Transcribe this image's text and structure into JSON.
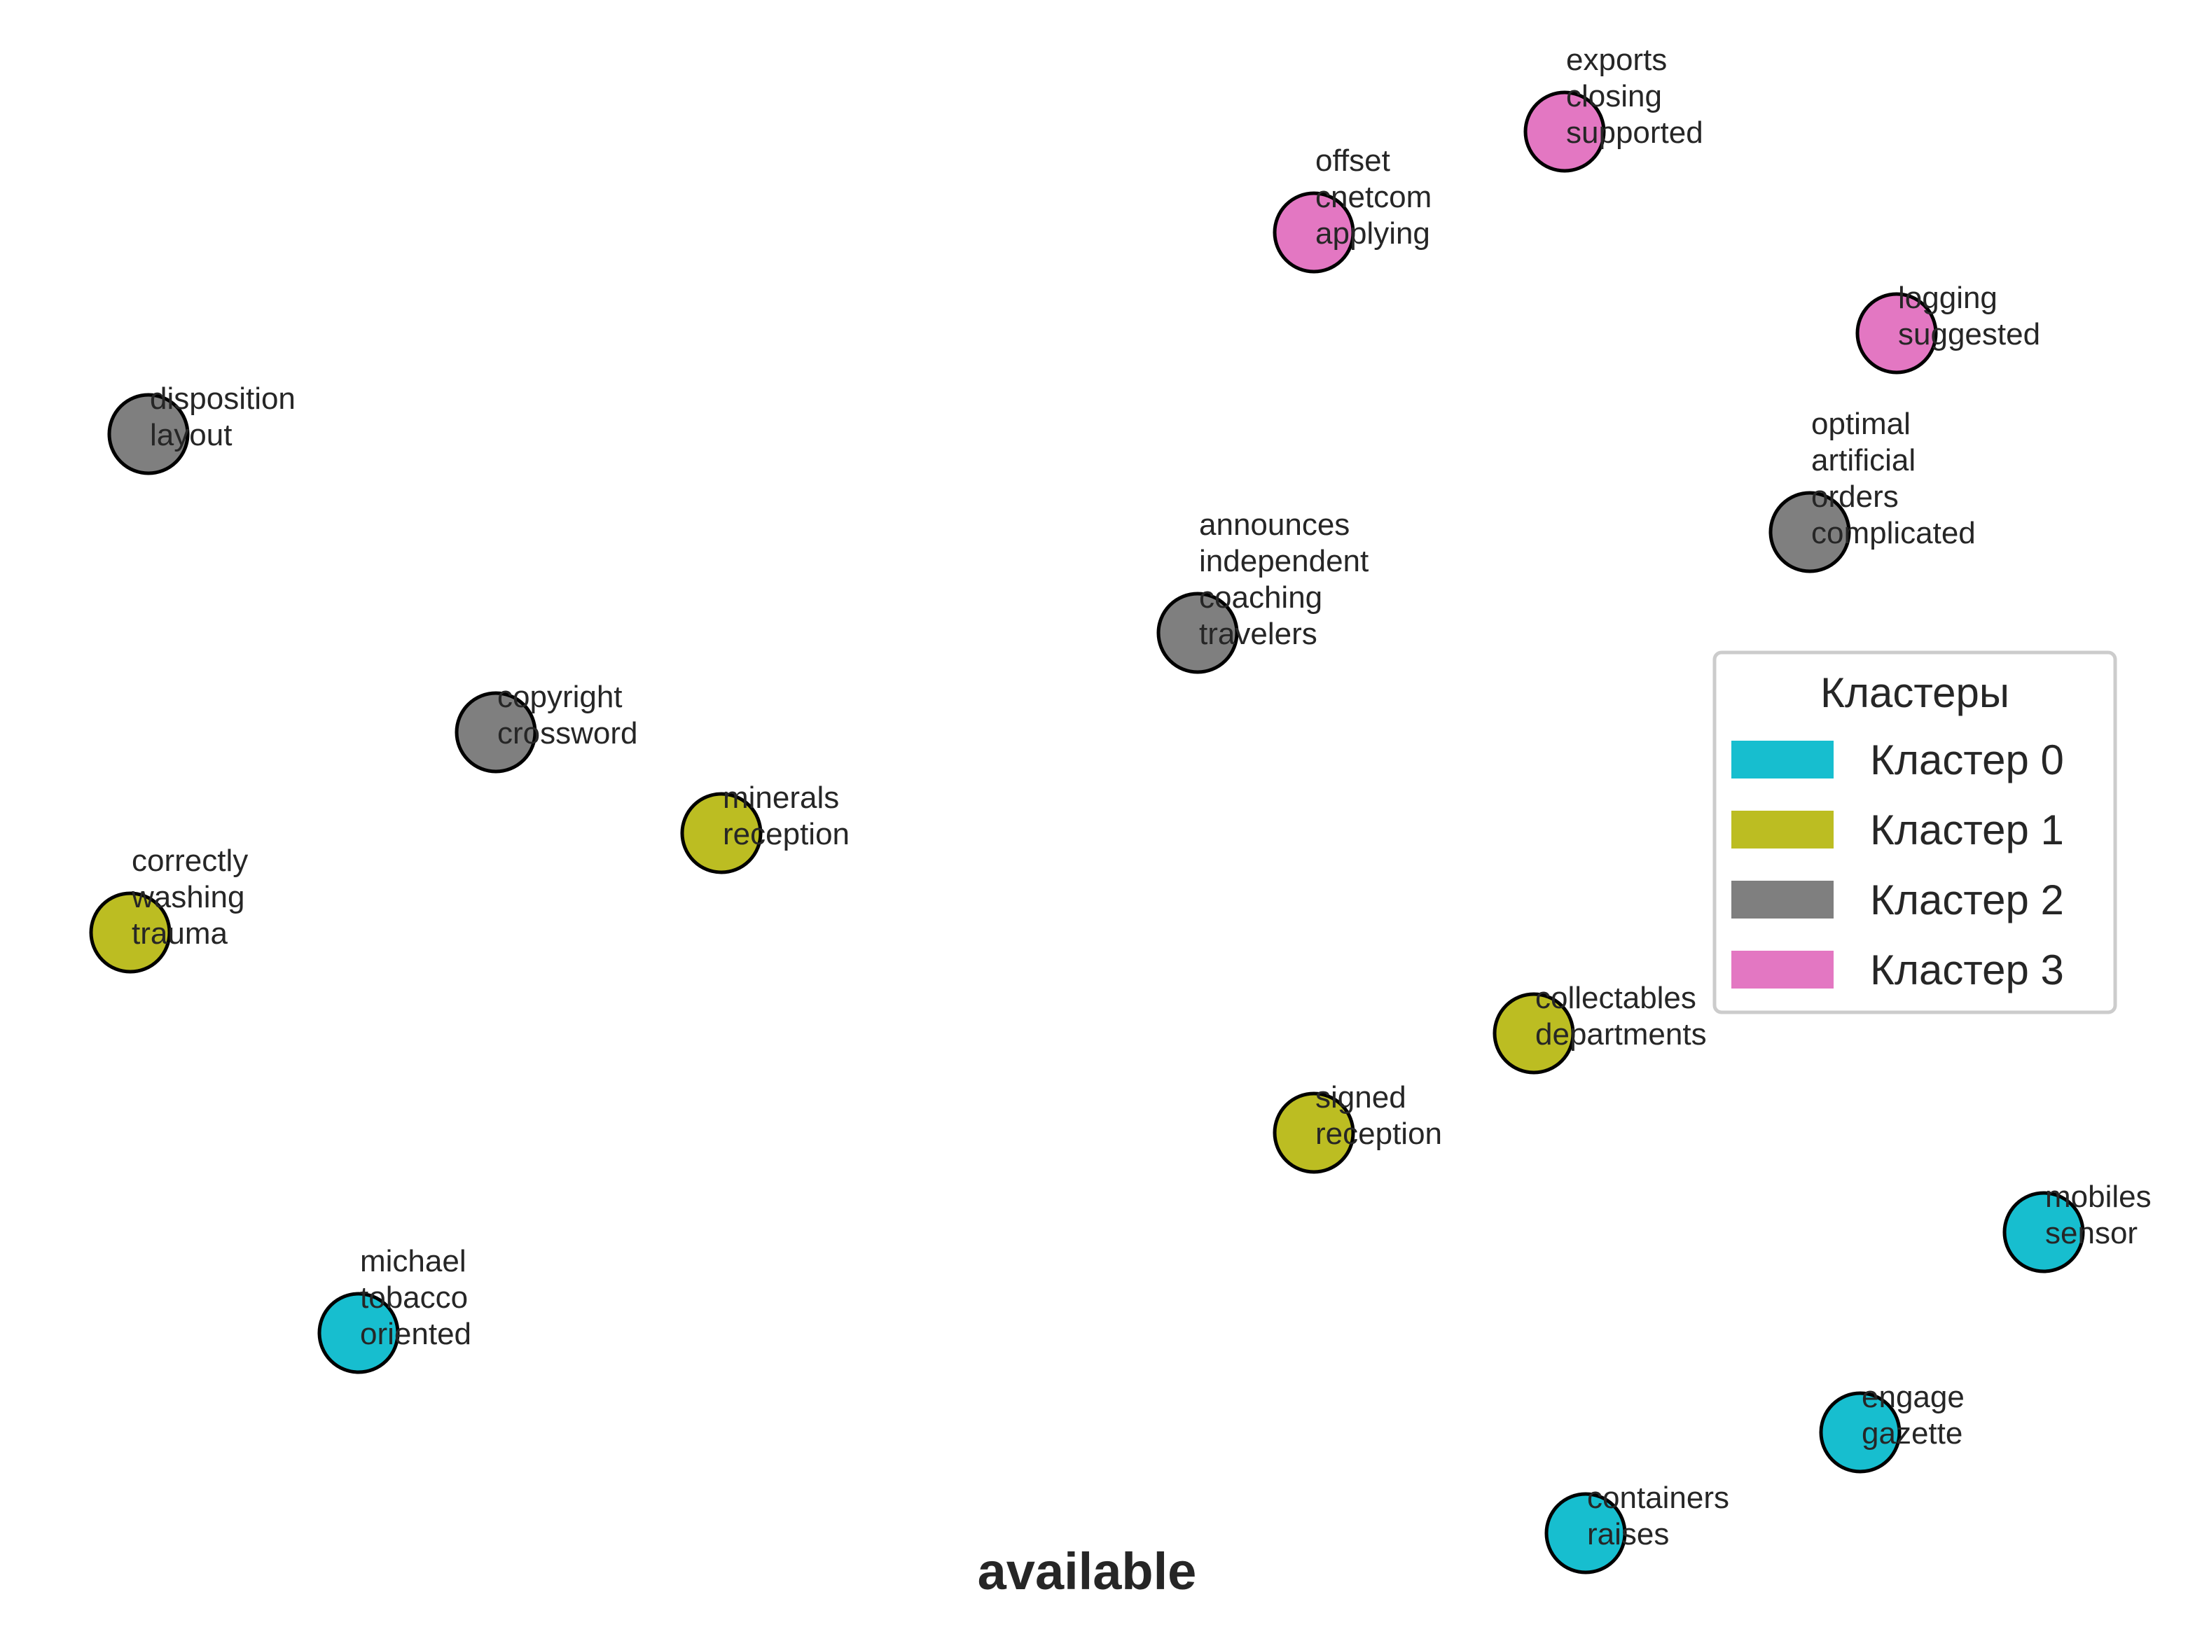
{
  "title": "available",
  "legend": {
    "title": "Кластеры",
    "items": [
      {
        "cluster": 0,
        "label": "Кластер 0",
        "color": "#17becf"
      },
      {
        "cluster": 1,
        "label": "Кластер 1",
        "color": "#bcbd22"
      },
      {
        "cluster": 2,
        "label": "Кластер 2",
        "color": "#7f7f7f"
      },
      {
        "cluster": 3,
        "label": "Кластер 3",
        "color": "#e377c2"
      }
    ]
  },
  "nodes": [
    {
      "id": "n1",
      "cluster": 3,
      "words": [
        "exports",
        "closing",
        "supported"
      ]
    },
    {
      "id": "n2",
      "cluster": 3,
      "words": [
        "offset",
        "cnetcom",
        "applying"
      ]
    },
    {
      "id": "n3",
      "cluster": 3,
      "words": [
        "logging",
        "suggested"
      ]
    },
    {
      "id": "n4",
      "cluster": 2,
      "words": [
        "disposition",
        "layout"
      ]
    },
    {
      "id": "n5",
      "cluster": 2,
      "words": [
        "optimal",
        "artificial",
        "orders",
        "complicated"
      ]
    },
    {
      "id": "n6",
      "cluster": 2,
      "words": [
        "announces",
        "independent",
        "coaching",
        "travelers"
      ]
    },
    {
      "id": "n7",
      "cluster": 2,
      "words": [
        "copyright",
        "crossword"
      ]
    },
    {
      "id": "n8",
      "cluster": 1,
      "words": [
        "minerals",
        "reception"
      ]
    },
    {
      "id": "n9",
      "cluster": 1,
      "words": [
        "correctly",
        "washing",
        "trauma"
      ]
    },
    {
      "id": "n10",
      "cluster": 1,
      "words": [
        "collectables",
        "departments"
      ]
    },
    {
      "id": "n11",
      "cluster": 1,
      "words": [
        "signed",
        "reception"
      ]
    },
    {
      "id": "n12",
      "cluster": 0,
      "words": [
        "mobiles",
        "sensor"
      ]
    },
    {
      "id": "n13",
      "cluster": 0,
      "words": [
        "michael",
        "tobacco",
        "oriented"
      ]
    },
    {
      "id": "n14",
      "cluster": 0,
      "words": [
        "engage",
        "gazette"
      ]
    },
    {
      "id": "n15",
      "cluster": 0,
      "words": [
        "containers",
        "raises"
      ]
    }
  ]
}
